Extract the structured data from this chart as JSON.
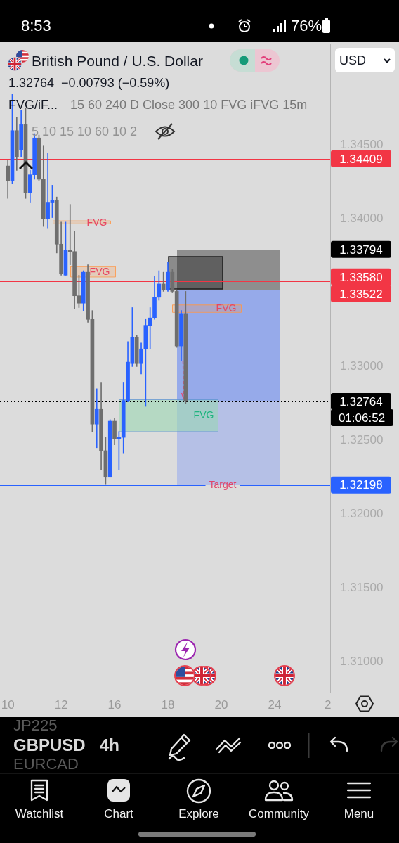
{
  "chart_data": {
    "type": "candlestick",
    "title": "British Pound / U.S. Dollar",
    "subtitle": "1.32764  −0.00793 (−0.59%)",
    "categories": [
      "10",
      null,
      null,
      null,
      null,
      null,
      null,
      null,
      null,
      null,
      null,
      null,
      "12",
      null,
      null,
      null,
      null,
      null,
      null,
      null,
      null,
      null,
      null,
      null,
      "16",
      null,
      null,
      null,
      null,
      null,
      null,
      null,
      null,
      null,
      null,
      null,
      "18",
      null,
      null,
      null,
      null,
      null,
      null,
      null,
      null,
      null,
      null,
      null,
      "20",
      null,
      null,
      null,
      null,
      null,
      null,
      null,
      null,
      null,
      null,
      null,
      "24",
      null,
      null,
      null,
      null,
      null,
      null,
      null,
      null,
      null,
      null,
      null,
      "2"
    ],
    "ohlc": [
      [
        1.3436,
        1.344,
        1.3414,
        1.3426
      ],
      [
        1.3426,
        1.3485,
        1.3424,
        1.346
      ],
      [
        1.346,
        1.3469,
        1.3433,
        1.3442
      ],
      [
        1.3447,
        1.3474,
        1.3442,
        1.3464
      ],
      [
        1.3464,
        1.3475,
        1.3414,
        1.3418
      ],
      [
        1.3418,
        1.3433,
        1.3411,
        1.343
      ],
      [
        1.343,
        1.3458,
        1.3427,
        1.3455
      ],
      [
        1.3455,
        1.3457,
        1.3426,
        1.3427
      ],
      [
        1.3427,
        1.345,
        1.3395,
        1.34
      ],
      [
        1.34,
        1.3445,
        1.3394,
        1.3411
      ],
      [
        1.3411,
        1.3423,
        1.3401,
        1.3413
      ],
      [
        1.3413,
        1.3415,
        1.3377,
        1.3383
      ],
      [
        1.3383,
        1.3398,
        1.3362,
        1.3363
      ],
      [
        1.3362,
        1.3398,
        1.3362,
        1.3379
      ],
      [
        1.3379,
        1.341,
        1.3369,
        1.3378
      ],
      [
        1.3378,
        1.3392,
        1.3339,
        1.3348
      ],
      [
        1.3348,
        1.3362,
        1.334,
        1.3343
      ],
      [
        1.3343,
        1.3365,
        1.3338,
        1.3364
      ],
      [
        1.3364,
        1.3369,
        1.333,
        1.3332
      ],
      [
        1.3332,
        1.3338,
        1.3256,
        1.3261
      ],
      [
        1.3261,
        1.3285,
        1.3245,
        1.3271
      ],
      [
        1.3271,
        1.3289,
        1.323,
        1.3243
      ],
      [
        1.3243,
        1.3252,
        1.322,
        1.3225
      ],
      [
        1.3225,
        1.3264,
        1.3225,
        1.3263
      ],
      [
        1.3263,
        1.3265,
        1.3247,
        1.3251
      ],
      [
        1.3251,
        1.3256,
        1.323,
        1.3252
      ],
      [
        1.3252,
        1.3289,
        1.3241,
        1.3277
      ],
      [
        1.3277,
        1.3317,
        1.3276,
        1.3303
      ],
      [
        1.3302,
        1.334,
        1.33,
        1.332
      ],
      [
        1.332,
        1.3321,
        1.33,
        1.3302
      ],
      [
        1.3302,
        1.3316,
        1.3295,
        1.3312
      ],
      [
        1.3312,
        1.3332,
        1.3273,
        1.3328
      ],
      [
        1.3328,
        1.334,
        1.3312,
        1.3333
      ],
      [
        1.3333,
        1.3361,
        1.3332,
        1.3347
      ],
      [
        1.3347,
        1.3365,
        1.3345,
        1.3356
      ],
      [
        1.3356,
        1.3364,
        1.3351,
        1.3352
      ],
      [
        1.3352,
        1.3371,
        1.3351,
        1.3364
      ],
      [
        1.3364,
        1.3366,
        1.335,
        1.3351
      ],
      [
        1.3351,
        1.3352,
        1.3313,
        1.3314
      ],
      [
        1.3314,
        1.3338,
        1.3304,
        1.3336
      ],
      [
        1.3336,
        1.3351,
        1.3275,
        1.32764
      ],
      null,
      null,
      null,
      null,
      null,
      null,
      null,
      null,
      null,
      null,
      null,
      null,
      null,
      null,
      null,
      null,
      null,
      null,
      null,
      null,
      null,
      null,
      null,
      null,
      null,
      null,
      null,
      null,
      null,
      null,
      null,
      null
    ],
    "colors": [
      "#6e6e6e",
      "#2962ff",
      "#6e6e6e",
      "#2962ff",
      "#6e6e6e",
      "#2962ff",
      "#2962ff",
      "#6e6e6e",
      "#6e6e6e",
      "#2962ff",
      "#2962ff",
      "#6e6e6e",
      "#6e6e6e",
      "#2962ff",
      "#6e6e6e",
      "#6e6e6e",
      "#6e6e6e",
      "#2962ff",
      "#6e6e6e",
      "#6e6e6e",
      "#2962ff",
      "#6e6e6e",
      "#6e6e6e",
      "#2962ff",
      "#6e6e6e",
      "#2962ff",
      "#2962ff",
      "#2962ff",
      "#2962ff",
      "#6e6e6e",
      "#2962ff",
      "#2962ff",
      "#2962ff",
      "#2962ff",
      "#2962ff",
      "#6e6e6e",
      "#2962ff",
      "#6e6e6e",
      "#6e6e6e",
      "#2962ff",
      "#6e6e6e",
      null,
      null,
      null,
      null,
      null,
      null,
      null,
      null,
      null,
      null,
      null,
      null,
      null,
      null,
      null,
      null,
      null,
      null,
      null,
      null,
      null,
      null,
      null,
      null,
      null,
      null,
      null,
      null,
      null,
      null,
      null,
      null
    ],
    "ylim": [
      1.3079,
      1.3519
    ],
    "yticks": [
      {
        "value": 1.31,
        "label": "1.31000"
      },
      {
        "value": 1.315,
        "label": "1.31500"
      },
      {
        "value": 1.32,
        "label": "1.32000"
      },
      {
        "value": 1.325,
        "label": "1.32500"
      },
      {
        "value": 1.33,
        "label": "1.33000"
      },
      {
        "value": 1.34,
        "label": "1.34000"
      },
      {
        "value": 1.345,
        "label": "1.34500"
      }
    ],
    "ref_lines": [
      {
        "axis": "y",
        "value": 1.34409,
        "label": "1.34409",
        "color": "#f23645"
      },
      {
        "axis": "y",
        "value": 1.33794,
        "label": "1.33794",
        "color": "#000000",
        "line_style": "dashed"
      },
      {
        "axis": "y",
        "value": 1.3358,
        "label": "1.33580",
        "color": "#f23645"
      },
      {
        "axis": "y",
        "value": 1.33522,
        "label": "1.33522",
        "color": "#f23645"
      },
      {
        "axis": "y",
        "value": 1.32764,
        "label": "1.32764",
        "color": "#000000",
        "line_style": "dotted"
      },
      {
        "axis": "y",
        "value": 1.32198,
        "label": "1.32198",
        "color": "#2962ff"
      }
    ],
    "bands": [
      {
        "axis": "y",
        "from": 1.3397,
        "to": 1.3399,
        "label": "FVG",
        "color": "#ff9646"
      },
      {
        "axis": "y",
        "from": 1.3361,
        "to": 1.3368,
        "label": "FVG",
        "color": "#ff9646"
      },
      {
        "axis": "y",
        "from": 1.3337,
        "to": 1.3342,
        "label": "FVG",
        "color": "#ff9646"
      },
      {
        "axis": "y",
        "from": 1.3256,
        "to": 1.3278,
        "label": "FVG",
        "color": "#96d7af"
      }
    ],
    "annotations": [
      "Target",
      "01:06:52",
      "FVG/iF...",
      "15 60 240 D Close 300 10 FVG iFVG 15m",
      "5 10 15 10 60 10 2",
      "USD",
      "8:53",
      "76%",
      "JP225",
      "GBPUSD",
      "EURCAD",
      "4h",
      "Watchlist",
      "Chart",
      "Explore",
      "Community",
      "Menu"
    ]
  }
}
